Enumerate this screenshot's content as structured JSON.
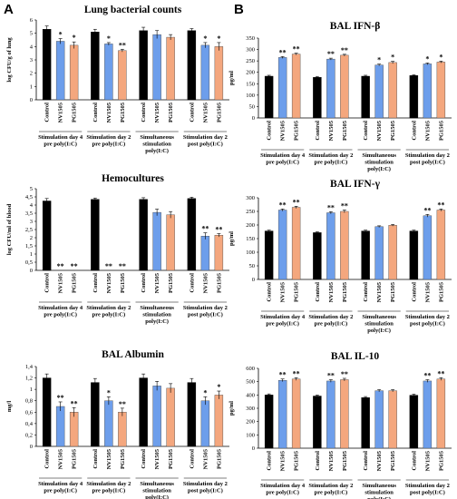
{
  "panel_labels": [
    "A",
    "B"
  ],
  "colors": {
    "Control": "#000000",
    "NV1505": "#6d9eeb",
    "PG1505": "#f4a77e"
  },
  "chart_data": [
    {
      "type": "bar",
      "title": "Lung bacterial counts",
      "ylabel": "log CFU/g of lung",
      "ylim": [
        0,
        6
      ],
      "yticks": [
        "0",
        "1",
        "2",
        "3",
        "4",
        "5",
        "6"
      ],
      "groups": [
        {
          "label": [
            "Stimulation day 4",
            "pre poly(I:C)"
          ],
          "bars": [
            {
              "name": "Control",
              "value": 5.3,
              "err": 0.25,
              "star": ""
            },
            {
              "name": "NV1505",
              "value": 4.4,
              "err": 0.2,
              "star": "*"
            },
            {
              "name": "PG1505",
              "value": 4.1,
              "err": 0.25,
              "star": "*"
            }
          ]
        },
        {
          "label": [
            "Stimulation day 2",
            "pre poly(I:C)"
          ],
          "bars": [
            {
              "name": "Control",
              "value": 5.1,
              "err": 0.2,
              "star": ""
            },
            {
              "name": "NV1505",
              "value": 4.2,
              "err": 0.1,
              "star": "*"
            },
            {
              "name": "PG1505",
              "value": 3.7,
              "err": 0.1,
              "star": "**"
            }
          ]
        },
        {
          "label": [
            "Simultaneous",
            "stimulation",
            "poly(I:C)"
          ],
          "bars": [
            {
              "name": "Control",
              "value": 5.2,
              "err": 0.25,
              "star": ""
            },
            {
              "name": "NV1505",
              "value": 4.9,
              "err": 0.3,
              "star": ""
            },
            {
              "name": "PG1505",
              "value": 4.7,
              "err": 0.2,
              "star": ""
            }
          ]
        },
        {
          "label": [
            "Stimulation day 2",
            "post poly(I:C)"
          ],
          "bars": [
            {
              "name": "Control",
              "value": 5.2,
              "err": 0.15,
              "star": ""
            },
            {
              "name": "NV1505",
              "value": 4.1,
              "err": 0.2,
              "star": "*"
            },
            {
              "name": "PG1505",
              "value": 4.0,
              "err": 0.3,
              "star": "*"
            }
          ]
        }
      ]
    },
    {
      "type": "bar",
      "title": "Hemocultures",
      "ylabel": "log CFU/ml of blood",
      "ylim": [
        0,
        5
      ],
      "yticks": [
        "0",
        "0,5",
        "1",
        "1,5",
        "2",
        "2,5",
        "3",
        "3,5",
        "4",
        "4,5",
        "5"
      ],
      "groups": [
        {
          "label": [
            "Stimulation day 4",
            "pre poly(I:C)"
          ],
          "bars": [
            {
              "name": "Control",
              "value": 4.25,
              "err": 0.15,
              "star": ""
            },
            {
              "name": "NV1505",
              "value": 0,
              "err": 0,
              "star": "**"
            },
            {
              "name": "PG1505",
              "value": 0,
              "err": 0,
              "star": "**"
            }
          ]
        },
        {
          "label": [
            "Stimulation day 2",
            "pre poly(I:C)"
          ],
          "bars": [
            {
              "name": "Control",
              "value": 4.35,
              "err": 0.08,
              "star": ""
            },
            {
              "name": "NV1505",
              "value": 0,
              "err": 0,
              "star": "**"
            },
            {
              "name": "PG1505",
              "value": 0,
              "err": 0,
              "star": "**"
            }
          ]
        },
        {
          "label": [
            "Simultaneous",
            "stimulation",
            "poly(I:C)"
          ],
          "bars": [
            {
              "name": "Control",
              "value": 4.35,
              "err": 0.1,
              "star": ""
            },
            {
              "name": "NV1505",
              "value": 3.55,
              "err": 0.2,
              "star": ""
            },
            {
              "name": "PG1505",
              "value": 3.4,
              "err": 0.2,
              "star": ""
            }
          ]
        },
        {
          "label": [
            "Stimulation day 2",
            "post poly(I:C)"
          ],
          "bars": [
            {
              "name": "Control",
              "value": 4.4,
              "err": 0.08,
              "star": ""
            },
            {
              "name": "NV1505",
              "value": 2.1,
              "err": 0.2,
              "star": "**"
            },
            {
              "name": "PG1505",
              "value": 2.15,
              "err": 0.1,
              "star": "**"
            }
          ]
        }
      ]
    },
    {
      "type": "bar",
      "title": "BAL Albumin",
      "ylabel": "mg/l",
      "ylim": [
        0,
        1.4
      ],
      "yticks": [
        "0",
        "0,2",
        "0,4",
        "0,6",
        "0,8",
        "1",
        "1,2",
        "1,4"
      ],
      "groups": [
        {
          "label": [
            "Stimulation day 4",
            "pre poly(I:C)"
          ],
          "bars": [
            {
              "name": "Control",
              "value": 1.2,
              "err": 0.07,
              "star": ""
            },
            {
              "name": "NV1505",
              "value": 0.7,
              "err": 0.08,
              "star": "**"
            },
            {
              "name": "PG1505",
              "value": 0.6,
              "err": 0.08,
              "star": "**"
            }
          ]
        },
        {
          "label": [
            "Stimulation day 2",
            "pre poly(I:C)"
          ],
          "bars": [
            {
              "name": "Control",
              "value": 1.12,
              "err": 0.07,
              "star": ""
            },
            {
              "name": "NV1505",
              "value": 0.8,
              "err": 0.07,
              "star": "*"
            },
            {
              "name": "PG1505",
              "value": 0.6,
              "err": 0.07,
              "star": "**"
            }
          ]
        },
        {
          "label": [
            "Simultaneous",
            "stimulation",
            "poly(I:C)"
          ],
          "bars": [
            {
              "name": "Control",
              "value": 1.2,
              "err": 0.07,
              "star": ""
            },
            {
              "name": "NV1505",
              "value": 1.06,
              "err": 0.08,
              "star": ""
            },
            {
              "name": "PG1505",
              "value": 1.02,
              "err": 0.08,
              "star": ""
            }
          ]
        },
        {
          "label": [
            "Stimulation day 2",
            "post poly(I:C)"
          ],
          "bars": [
            {
              "name": "Control",
              "value": 1.12,
              "err": 0.07,
              "star": ""
            },
            {
              "name": "NV1505",
              "value": 0.8,
              "err": 0.07,
              "star": "*"
            },
            {
              "name": "PG1505",
              "value": 0.9,
              "err": 0.07,
              "star": "*"
            }
          ]
        }
      ]
    },
    {
      "type": "bar",
      "title": "BAL IFN-β",
      "ylabel": "pg/ml",
      "ylim": [
        0,
        350
      ],
      "yticks": [
        "0",
        "50",
        "100",
        "150",
        "200",
        "250",
        "300",
        "350"
      ],
      "groups": [
        {
          "label": [
            "Stimulation day 4",
            "pre poly(I:C)"
          ],
          "bars": [
            {
              "name": "Control",
              "value": 183,
              "err": 4,
              "star": ""
            },
            {
              "name": "NV1505",
              "value": 265,
              "err": 4,
              "star": "**"
            },
            {
              "name": "PG1505",
              "value": 280,
              "err": 4,
              "star": "**"
            }
          ]
        },
        {
          "label": [
            "Stimulation day 2",
            "pre poly(I:C)"
          ],
          "bars": [
            {
              "name": "Control",
              "value": 178,
              "err": 4,
              "star": ""
            },
            {
              "name": "NV1505",
              "value": 258,
              "err": 4,
              "star": "**"
            },
            {
              "name": "PG1505",
              "value": 275,
              "err": 4,
              "star": "**"
            }
          ]
        },
        {
          "label": [
            "Simultaneous",
            "stimulation",
            "poly(I:C)"
          ],
          "bars": [
            {
              "name": "Control",
              "value": 183,
              "err": 4,
              "star": ""
            },
            {
              "name": "NV1505",
              "value": 232,
              "err": 4,
              "star": "*"
            },
            {
              "name": "PG1505",
              "value": 243,
              "err": 5,
              "star": "*"
            }
          ]
        },
        {
          "label": [
            "Stimulation day 2",
            "post poly(I:C)"
          ],
          "bars": [
            {
              "name": "Control",
              "value": 186,
              "err": 3,
              "star": ""
            },
            {
              "name": "NV1505",
              "value": 237,
              "err": 4,
              "star": "*"
            },
            {
              "name": "PG1505",
              "value": 245,
              "err": 4,
              "star": "*"
            }
          ]
        }
      ]
    },
    {
      "type": "bar",
      "title": "BAL IFN-γ",
      "ylabel": "pg/ml",
      "ylim": [
        0,
        300
      ],
      "yticks": [
        "0",
        "50",
        "100",
        "150",
        "200",
        "250",
        "300"
      ],
      "groups": [
        {
          "label": [
            "Stimulation day 4",
            "pre poly(I:C)"
          ],
          "bars": [
            {
              "name": "Control",
              "value": 178,
              "err": 3,
              "star": ""
            },
            {
              "name": "NV1505",
              "value": 255,
              "err": 4,
              "star": "**"
            },
            {
              "name": "PG1505",
              "value": 265,
              "err": 4,
              "star": "**"
            }
          ]
        },
        {
          "label": [
            "Stimulation day 2",
            "pre poly(I:C)"
          ],
          "bars": [
            {
              "name": "Control",
              "value": 172,
              "err": 3,
              "star": ""
            },
            {
              "name": "NV1505",
              "value": 245,
              "err": 4,
              "star": "**"
            },
            {
              "name": "PG1505",
              "value": 250,
              "err": 5,
              "star": "**"
            }
          ]
        },
        {
          "label": [
            "Simultaneous",
            "stimulation",
            "poly(I:C)"
          ],
          "bars": [
            {
              "name": "Control",
              "value": 178,
              "err": 3,
              "star": ""
            },
            {
              "name": "NV1505",
              "value": 194,
              "err": 3,
              "star": ""
            },
            {
              "name": "PG1505",
              "value": 199,
              "err": 3,
              "star": ""
            }
          ]
        },
        {
          "label": [
            "Stimulation day 2",
            "post poly(I:C)"
          ],
          "bars": [
            {
              "name": "Control",
              "value": 178,
              "err": 3,
              "star": ""
            },
            {
              "name": "NV1505",
              "value": 234,
              "err": 5,
              "star": "**"
            },
            {
              "name": "PG1505",
              "value": 255,
              "err": 4,
              "star": "**"
            }
          ]
        }
      ]
    },
    {
      "type": "bar",
      "title": "BAL IL-10",
      "ylabel": "pg/ml",
      "ylim": [
        0,
        600
      ],
      "yticks": [
        "0",
        "100",
        "200",
        "300",
        "400",
        "500",
        "600"
      ],
      "groups": [
        {
          "label": [
            "Stimulation day 4",
            "pre poly(I:C)"
          ],
          "bars": [
            {
              "name": "Control",
              "value": 400,
              "err": 8,
              "star": ""
            },
            {
              "name": "NV1505",
              "value": 510,
              "err": 10,
              "star": "**"
            },
            {
              "name": "PG1505",
              "value": 520,
              "err": 10,
              "star": "**"
            }
          ]
        },
        {
          "label": [
            "Stimulation day 2",
            "pre poly(I:C)"
          ],
          "bars": [
            {
              "name": "Control",
              "value": 392,
              "err": 8,
              "star": ""
            },
            {
              "name": "NV1505",
              "value": 505,
              "err": 10,
              "star": "**"
            },
            {
              "name": "PG1505",
              "value": 515,
              "err": 10,
              "star": "**"
            }
          ]
        },
        {
          "label": [
            "Simultaneous",
            "stimulation",
            "poly(I:C)"
          ],
          "bars": [
            {
              "name": "Control",
              "value": 380,
              "err": 8,
              "star": ""
            },
            {
              "name": "NV1505",
              "value": 432,
              "err": 8,
              "star": ""
            },
            {
              "name": "PG1505",
              "value": 432,
              "err": 8,
              "star": ""
            }
          ]
        },
        {
          "label": [
            "Stimulation day 2",
            "post poly(I:C)"
          ],
          "bars": [
            {
              "name": "Control",
              "value": 398,
              "err": 8,
              "star": ""
            },
            {
              "name": "NV1505",
              "value": 505,
              "err": 10,
              "star": "**"
            },
            {
              "name": "PG1505",
              "value": 520,
              "err": 10,
              "star": "**"
            }
          ]
        }
      ]
    }
  ]
}
